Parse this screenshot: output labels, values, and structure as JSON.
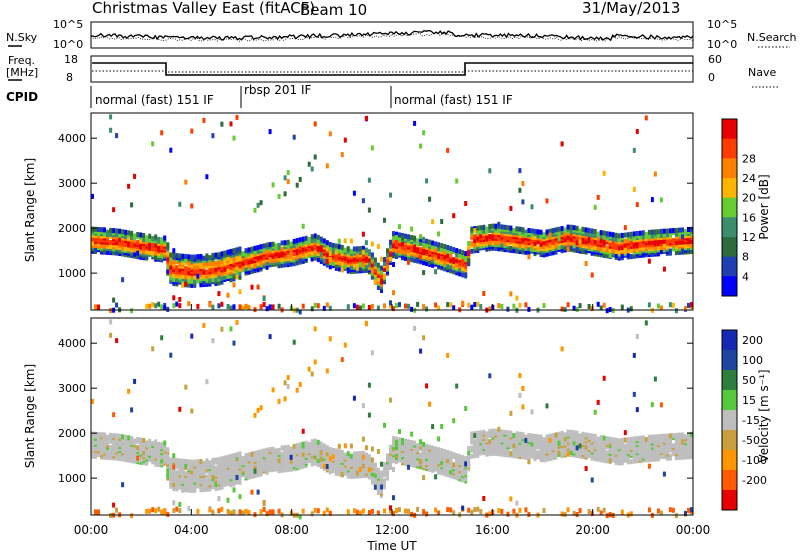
{
  "header": {
    "station": "Christmas Valley East (fitACF)",
    "beam": "Beam 10",
    "date": "31/May/2013"
  },
  "noise_panel": {
    "left_label": "N.Sky",
    "right_label": "N.Search",
    "left_ticks": [
      "10^5",
      "10^0"
    ],
    "right_ticks": [
      "10^5",
      "10^0"
    ]
  },
  "freq_panel": {
    "left_label_line1": "Freq.",
    "left_label_line2": "[MHz]",
    "right_label": "Nave",
    "left_ticks": [
      "18",
      "8"
    ],
    "right_ticks": [
      "60",
      "0"
    ]
  },
  "cpid": {
    "label": "CPID",
    "segments": [
      {
        "text": "normal (fast) 151 IF",
        "start": 0,
        "end": 6
      },
      {
        "text": "rbsp 201 IF",
        "start": 6,
        "end": 12
      },
      {
        "text": "normal (fast) 151 IF",
        "start": 12,
        "end": 24
      }
    ]
  },
  "colors": {
    "power_scale": [
      "#0000ff",
      "#1f3fb4",
      "#2d6b3c",
      "#3c8c6e",
      "#66cc33",
      "#ffb400",
      "#ff7f00",
      "#ff3c00",
      "#e60000"
    ],
    "velocity_scale": [
      "#1428b4",
      "#1e46a0",
      "#2d7d3c",
      "#55c83c",
      "#bebebe",
      "#c8a040",
      "#ff9600",
      "#ff5a00",
      "#e60000"
    ]
  },
  "chart_data": [
    {
      "type": "heatmap",
      "name": "power",
      "ylabel": "Slant Range [km]",
      "xlabel": "Time UT",
      "x_ticks": [
        "00:00",
        "04:00",
        "08:00",
        "12:00",
        "16:00",
        "20:00",
        "00:00"
      ],
      "y_ticks": [
        1000,
        2000,
        3000,
        4000
      ],
      "xlim": [
        0,
        24
      ],
      "ylim": [
        180,
        4560
      ],
      "colorbar_label": "Power [dB]",
      "colorbar_ticks": [
        4,
        8,
        12,
        16,
        20,
        24,
        28
      ],
      "band_center_km": [
        [
          0.0,
          1800
        ],
        [
          1.0,
          1760
        ],
        [
          2.0,
          1660
        ],
        [
          2.9,
          1600
        ],
        [
          3.1,
          1150
        ],
        [
          4.0,
          1100
        ],
        [
          5.0,
          1150
        ],
        [
          6.0,
          1300
        ],
        [
          7.0,
          1450
        ],
        [
          8.0,
          1520
        ],
        [
          8.9,
          1650
        ],
        [
          9.5,
          1450
        ],
        [
          10.3,
          1350
        ],
        [
          11.0,
          1380
        ],
        [
          11.5,
          900
        ],
        [
          12.0,
          1700
        ],
        [
          13.0,
          1580
        ],
        [
          14.0,
          1420
        ],
        [
          14.9,
          1250
        ],
        [
          15.1,
          1800
        ],
        [
          16.0,
          1870
        ],
        [
          17.0,
          1800
        ],
        [
          18.0,
          1720
        ],
        [
          19.0,
          1850
        ],
        [
          20.0,
          1750
        ],
        [
          21.0,
          1650
        ],
        [
          22.0,
          1720
        ],
        [
          23.0,
          1760
        ],
        [
          24.0,
          1800
        ]
      ]
    },
    {
      "type": "heatmap",
      "name": "velocity",
      "ylabel": "Slant Range [km]",
      "xlabel": "Time UT",
      "x_ticks": [
        "00:00",
        "04:00",
        "08:00",
        "12:00",
        "16:00",
        "20:00",
        "00:00"
      ],
      "y_ticks": [
        1000,
        2000,
        3000,
        4000
      ],
      "xlim": [
        0,
        24
      ],
      "ylim": [
        180,
        4560
      ],
      "colorbar_label": "Velocity [m s⁻¹]",
      "colorbar_ticks": [
        200,
        100,
        50,
        15,
        -15,
        -50,
        -100,
        -200
      ]
    }
  ]
}
